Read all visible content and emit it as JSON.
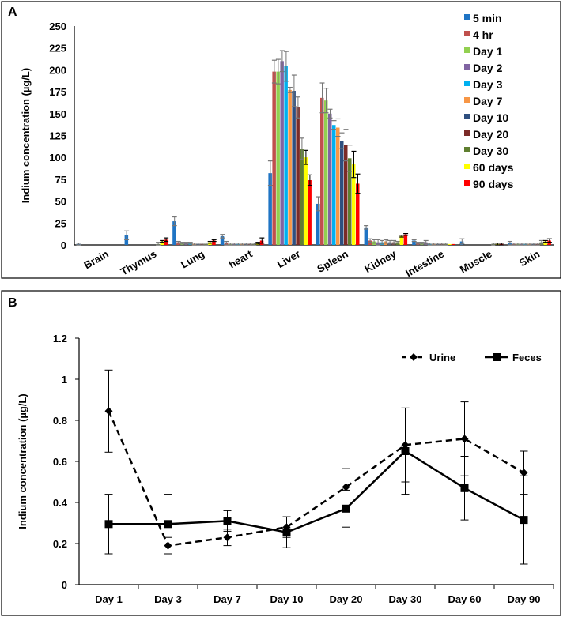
{
  "chart_data": [
    {
      "panel": "A",
      "type": "bar",
      "ylabel": "Indium concentration (µg/L)",
      "ylim": [
        0,
        250
      ],
      "yticks": [
        0,
        25,
        50,
        75,
        100,
        125,
        150,
        175,
        200,
        225,
        250
      ],
      "categories": [
        "Brain",
        "Thymus",
        "Lung",
        "heart",
        "Liver",
        "Spleen",
        "Kidney",
        "Intestine",
        "Muscle",
        "Skin"
      ],
      "legend_position": "top-right",
      "series": [
        {
          "name": "5 min",
          "color": "#1f74c4",
          "values": [
            1,
            11,
            27,
            10,
            82,
            47,
            20,
            5,
            4,
            2
          ],
          "errors": [
            1,
            5,
            5,
            2,
            14,
            8,
            2,
            1,
            3,
            2
          ]
        },
        {
          "name": "4 hr",
          "color": "#c0504d",
          "values": [
            0,
            0,
            3,
            2,
            198,
            168,
            5,
            2,
            0,
            1
          ],
          "errors": [
            0,
            0,
            1,
            2,
            13,
            17,
            2,
            1,
            0,
            1
          ]
        },
        {
          "name": "Day 1",
          "color": "#92d050",
          "values": [
            0,
            0,
            2,
            1,
            198,
            165,
            4,
            2,
            0,
            1
          ],
          "errors": [
            0,
            0,
            1,
            1,
            14,
            14,
            2,
            1,
            0,
            1
          ]
        },
        {
          "name": "Day 2",
          "color": "#8064a2",
          "values": [
            0,
            0,
            2,
            1,
            210,
            150,
            3,
            3,
            0,
            1
          ],
          "errors": [
            0,
            0,
            1,
            1,
            12,
            5,
            3,
            2,
            0,
            1
          ]
        },
        {
          "name": "Day 3",
          "color": "#00b0f0",
          "values": [
            0,
            0,
            2,
            1,
            204,
            137,
            3,
            1,
            0,
            1
          ],
          "errors": [
            0,
            0,
            1,
            1,
            17,
            5,
            2,
            1,
            0,
            1
          ]
        },
        {
          "name": "Day 7",
          "color": "#f79646",
          "values": [
            0,
            0,
            1,
            1,
            177,
            134,
            4,
            1,
            0,
            1
          ],
          "errors": [
            0,
            0,
            1,
            1,
            3,
            10,
            2,
            1,
            0,
            1
          ]
        },
        {
          "name": "Day 10",
          "color": "#2f4f7f",
          "values": [
            0,
            0,
            1,
            1,
            176,
            119,
            3,
            1,
            0,
            1
          ],
          "errors": [
            0,
            0,
            1,
            1,
            18,
            9,
            2,
            1,
            0,
            1
          ]
        },
        {
          "name": "Day 20",
          "color": "#7b2b27",
          "values": [
            0,
            0,
            1,
            1,
            157,
            114,
            3,
            1,
            0,
            1
          ],
          "errors": [
            0,
            0,
            1,
            1,
            12,
            18,
            2,
            1,
            0,
            1
          ]
        },
        {
          "name": "Day 30",
          "color": "#5f7f30",
          "values": [
            0,
            1,
            1,
            1,
            110,
            99,
            3,
            1,
            1,
            3
          ],
          "errors": [
            0,
            2,
            1,
            1,
            12,
            15,
            1,
            1,
            1,
            2
          ]
        },
        {
          "name": "60 days",
          "color": "#ffff00",
          "values": [
            0,
            4,
            3,
            2,
            100,
            92,
            10,
            1,
            1,
            4
          ],
          "errors": [
            0,
            1,
            1,
            1,
            8,
            15,
            1,
            0,
            1,
            1
          ]
        },
        {
          "name": "90 days",
          "color": "#ff0000",
          "values": [
            0,
            6,
            5,
            5,
            74,
            70,
            12,
            1,
            1,
            5
          ],
          "errors": [
            0,
            2,
            1,
            3,
            6,
            11,
            1,
            0,
            1,
            2
          ]
        }
      ]
    },
    {
      "panel": "B",
      "type": "line",
      "ylabel": "Indium concentration (µg/L)",
      "ylim": [
        0,
        1.2
      ],
      "yticks": [
        "0",
        "0.2",
        "0.4",
        "0.6",
        "0.8",
        "1",
        "1.2"
      ],
      "categories": [
        "Day 1",
        "Day 3",
        "Day 7",
        "Day 10",
        "Day 20",
        "Day 30",
        "Day 60",
        "Day 90"
      ],
      "legend_position": "top-right",
      "series": [
        {
          "name": "Urine",
          "style": "dashed",
          "marker": "diamond",
          "values": [
            0.845,
            0.19,
            0.23,
            0.28,
            0.475,
            0.68,
            0.71,
            0.545
          ],
          "errors": [
            0.2,
            0.04,
            0.04,
            0.05,
            0.09,
            0.18,
            0.18,
            0.105
          ]
        },
        {
          "name": "Feces",
          "style": "solid",
          "marker": "square",
          "values": [
            0.295,
            0.295,
            0.31,
            0.255,
            0.37,
            0.65,
            0.47,
            0.315
          ],
          "errors": [
            0.145,
            0.145,
            0.05,
            0.075,
            0.09,
            0.21,
            0.155,
            0.215
          ]
        }
      ]
    }
  ],
  "labels": {
    "a": "A",
    "b": "B"
  }
}
